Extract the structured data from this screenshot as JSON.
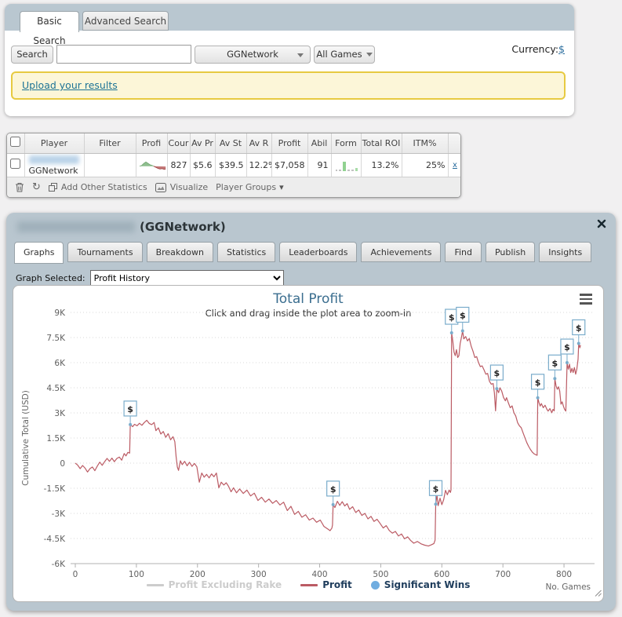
{
  "search_panel": {
    "tabs": [
      {
        "label": "Basic Search",
        "active": true
      },
      {
        "label": "Advanced Search",
        "active": false
      }
    ],
    "search_button_label": "Search",
    "search_input_value": "",
    "network_select_value": "GGNetwork",
    "games_select_value": "All Games",
    "currency_label": "Currency:",
    "currency_symbol": "$",
    "upload_link_label": "Upload your results"
  },
  "results_table": {
    "columns": [
      "Player",
      "Filter",
      "Profi",
      "Cour",
      "Av Pr",
      "Av St",
      "Av R",
      "Profit",
      "Abil",
      "Form",
      "Total ROI",
      "ITM%"
    ],
    "row": {
      "player_name_hidden": true,
      "network": "GGNetwork",
      "count": "827",
      "av_profit": "$5.6",
      "av_stake": "$39.5",
      "av_roi": "12.2%",
      "profit": "$7,058",
      "ability": "91",
      "total_roi": "13.2%",
      "itm": "25%",
      "remove_label": "x"
    },
    "toolbar": {
      "add_other_statistics_label": "Add Other Statistics",
      "visualize_label": "Visualize",
      "player_groups_label": "Player Groups"
    }
  },
  "player_panel": {
    "title_network": "(GGNetwork)",
    "tabs": [
      "Graphs",
      "Tournaments",
      "Breakdown",
      "Statistics",
      "Leaderboards",
      "Achievements",
      "Find",
      "Publish",
      "Insights"
    ],
    "active_tab": "Graphs",
    "graph_selected_label": "Graph Selected:",
    "graph_selected_value": "Profit History"
  },
  "icons": {
    "trash": "trash-can",
    "refresh": "circular-arrow",
    "add_statistics": "copy-squares",
    "visualize": "picture",
    "player_groups": "chevron-down",
    "close": "x-cross",
    "chart_menu": "hamburger",
    "resize": "diagonal-grip",
    "dropdown": "triangle-down"
  },
  "chart_data": {
    "type": "line",
    "title": "Total Profit",
    "subtitle": "Click and drag inside the plot area to zoom-in",
    "xlabel": "No. Games",
    "ylabel": "Cumulative Total (USD)",
    "xlim": [
      0,
      850
    ],
    "ylim": [
      -6000,
      9000
    ],
    "x_ticks": [
      0,
      100,
      200,
      300,
      400,
      500,
      600,
      700,
      800
    ],
    "y_ticks": [
      {
        "label": "9K",
        "value": 9000
      },
      {
        "label": "7.5K",
        "value": 7500
      },
      {
        "label": "6K",
        "value": 6000
      },
      {
        "label": "4.5K",
        "value": 4500
      },
      {
        "label": "3K",
        "value": 3000
      },
      {
        "label": "1.5K",
        "value": 1500
      },
      {
        "label": "0",
        "value": 0
      },
      {
        "label": "-1.5K",
        "value": -1500
      },
      {
        "label": "-3K",
        "value": -3000
      },
      {
        "label": "-4.5K",
        "value": -4500
      },
      {
        "label": "-6K",
        "value": -6000
      }
    ],
    "grid": "dotted-horizontal",
    "legend": [
      {
        "name": "Profit Excluding Rake",
        "color": "#cccccc",
        "enabled": false,
        "marker": "line"
      },
      {
        "name": "Profit",
        "color": "#bb5b64",
        "enabled": true,
        "marker": "line"
      },
      {
        "name": "Significant Wins",
        "color": "#70ade0",
        "enabled": true,
        "marker": "circle"
      }
    ],
    "series": [
      {
        "name": "Profit",
        "color": "#bb5b64",
        "points": [
          [
            0,
            0
          ],
          [
            4,
            -120
          ],
          [
            8,
            -330
          ],
          [
            12,
            -140
          ],
          [
            16,
            -300
          ],
          [
            20,
            -530
          ],
          [
            24,
            -330
          ],
          [
            28,
            -230
          ],
          [
            32,
            -450
          ],
          [
            36,
            -180
          ],
          [
            40,
            60
          ],
          [
            44,
            -130
          ],
          [
            48,
            90
          ],
          [
            52,
            280
          ],
          [
            56,
            110
          ],
          [
            60,
            300
          ],
          [
            64,
            90
          ],
          [
            68,
            280
          ],
          [
            72,
            360
          ],
          [
            76,
            180
          ],
          [
            80,
            570
          ],
          [
            83,
            430
          ],
          [
            86,
            640
          ],
          [
            89,
            600
          ],
          [
            90,
            2300
          ],
          [
            94,
            2180
          ],
          [
            97,
            2320
          ],
          [
            101,
            2230
          ],
          [
            105,
            2380
          ],
          [
            109,
            2260
          ],
          [
            113,
            2430
          ],
          [
            117,
            2560
          ],
          [
            121,
            2370
          ],
          [
            125,
            2300
          ],
          [
            129,
            2430
          ],
          [
            132,
            1940
          ],
          [
            136,
            2110
          ],
          [
            140,
            1740
          ],
          [
            144,
            1890
          ],
          [
            148,
            1540
          ],
          [
            152,
            1760
          ],
          [
            156,
            1390
          ],
          [
            160,
            1580
          ],
          [
            163,
            1280
          ],
          [
            165,
            400
          ],
          [
            167,
            -230
          ],
          [
            169,
            -430
          ],
          [
            172,
            140
          ],
          [
            175,
            -90
          ],
          [
            179,
            110
          ],
          [
            183,
            -160
          ],
          [
            187,
            50
          ],
          [
            191,
            -190
          ],
          [
            195,
            -20
          ],
          [
            199,
            -220
          ],
          [
            203,
            -1140
          ],
          [
            207,
            -590
          ],
          [
            211,
            -840
          ],
          [
            215,
            -670
          ],
          [
            219,
            -880
          ],
          [
            223,
            -640
          ],
          [
            227,
            -810
          ],
          [
            231,
            -590
          ],
          [
            235,
            -1470
          ],
          [
            239,
            -1140
          ],
          [
            243,
            -1310
          ],
          [
            247,
            -1170
          ],
          [
            251,
            -1390
          ],
          [
            255,
            -1710
          ],
          [
            259,
            -1470
          ],
          [
            264,
            -1770
          ],
          [
            269,
            -1540
          ],
          [
            275,
            -1810
          ],
          [
            281,
            -1610
          ],
          [
            287,
            -1960
          ],
          [
            293,
            -1790
          ],
          [
            299,
            -2230
          ],
          [
            305,
            -2040
          ],
          [
            311,
            -2330
          ],
          [
            317,
            -2140
          ],
          [
            323,
            -2400
          ],
          [
            329,
            -2230
          ],
          [
            335,
            -2500
          ],
          [
            341,
            -2330
          ],
          [
            347,
            -2830
          ],
          [
            353,
            -2580
          ],
          [
            359,
            -3060
          ],
          [
            365,
            -2880
          ],
          [
            371,
            -3230
          ],
          [
            377,
            -3080
          ],
          [
            383,
            -3400
          ],
          [
            389,
            -3280
          ],
          [
            395,
            -3530
          ],
          [
            401,
            -3400
          ],
          [
            407,
            -3780
          ],
          [
            413,
            -3930
          ],
          [
            417,
            -4030
          ],
          [
            420,
            -3880
          ],
          [
            421,
            -3700
          ],
          [
            422,
            -2480
          ],
          [
            425,
            -2650
          ],
          [
            429,
            -2280
          ],
          [
            433,
            -2520
          ],
          [
            437,
            -2300
          ],
          [
            441,
            -2560
          ],
          [
            445,
            -2420
          ],
          [
            449,
            -2760
          ],
          [
            454,
            -2600
          ],
          [
            459,
            -2950
          ],
          [
            464,
            -2800
          ],
          [
            469,
            -3120
          ],
          [
            474,
            -3000
          ],
          [
            479,
            -3330
          ],
          [
            484,
            -3180
          ],
          [
            489,
            -3480
          ],
          [
            494,
            -3350
          ],
          [
            499,
            -3600
          ],
          [
            504,
            -3870
          ],
          [
            509,
            -3730
          ],
          [
            514,
            -4020
          ],
          [
            519,
            -4180
          ],
          [
            524,
            -4080
          ],
          [
            529,
            -4350
          ],
          [
            534,
            -4230
          ],
          [
            539,
            -4520
          ],
          [
            544,
            -4400
          ],
          [
            549,
            -4620
          ],
          [
            554,
            -4780
          ],
          [
            560,
            -4680
          ],
          [
            566,
            -4820
          ],
          [
            572,
            -4900
          ],
          [
            578,
            -4950
          ],
          [
            583,
            -4870
          ],
          [
            587,
            -4800
          ],
          [
            589,
            -4600
          ],
          [
            590,
            -2450
          ],
          [
            592,
            -1900
          ],
          [
            594,
            -2540
          ],
          [
            597,
            -2090
          ],
          [
            600,
            -2480
          ],
          [
            603,
            -2190
          ],
          [
            606,
            -1620
          ],
          [
            609,
            -1890
          ],
          [
            612,
            -1610
          ],
          [
            614,
            -1750
          ],
          [
            615,
            -1600
          ],
          [
            616,
            7780
          ],
          [
            618,
            7280
          ],
          [
            620,
            6620
          ],
          [
            622,
            6420
          ],
          [
            624,
            6780
          ],
          [
            626,
            6310
          ],
          [
            628,
            6420
          ],
          [
            630,
            7150
          ],
          [
            632,
            7480
          ],
          [
            634,
            7900
          ],
          [
            636,
            7420
          ],
          [
            639,
            7560
          ],
          [
            642,
            7300
          ],
          [
            645,
            7440
          ],
          [
            648,
            6990
          ],
          [
            651,
            6690
          ],
          [
            654,
            6310
          ],
          [
            657,
            6360
          ],
          [
            660,
            6010
          ],
          [
            663,
            5760
          ],
          [
            666,
            5810
          ],
          [
            669,
            5580
          ],
          [
            672,
            5310
          ],
          [
            675,
            5360
          ],
          [
            678,
            4890
          ],
          [
            681,
            4710
          ],
          [
            684,
            4760
          ],
          [
            686,
            4200
          ],
          [
            688,
            3120
          ],
          [
            690,
            4450
          ],
          [
            693,
            4210
          ],
          [
            695,
            4500
          ],
          [
            698,
            4310
          ],
          [
            701,
            3920
          ],
          [
            704,
            3720
          ],
          [
            706,
            3910
          ],
          [
            709,
            3590
          ],
          [
            712,
            3310
          ],
          [
            715,
            3420
          ],
          [
            718,
            3010
          ],
          [
            721,
            2820
          ],
          [
            724,
            2420
          ],
          [
            727,
            2230
          ],
          [
            730,
            2120
          ],
          [
            733,
            1810
          ],
          [
            736,
            1520
          ],
          [
            739,
            1230
          ],
          [
            742,
            1010
          ],
          [
            745,
            820
          ],
          [
            748,
            660
          ],
          [
            751,
            560
          ],
          [
            754,
            500
          ],
          [
            756,
            470
          ],
          [
            757,
            3900
          ],
          [
            759,
            3620
          ],
          [
            761,
            3410
          ],
          [
            763,
            3560
          ],
          [
            766,
            3310
          ],
          [
            769,
            3460
          ],
          [
            772,
            3210
          ],
          [
            774,
            3110
          ],
          [
            777,
            3260
          ],
          [
            780,
            3010
          ],
          [
            782,
            3210
          ],
          [
            784,
            3120
          ],
          [
            785,
            5050
          ],
          [
            787,
            4620
          ],
          [
            789,
            4410
          ],
          [
            791,
            4560
          ],
          [
            793,
            4310
          ],
          [
            795,
            3520
          ],
          [
            797,
            3660
          ],
          [
            799,
            3410
          ],
          [
            801,
            3210
          ],
          [
            803,
            3110
          ],
          [
            805,
            6000
          ],
          [
            807,
            5610
          ],
          [
            809,
            5910
          ],
          [
            811,
            5410
          ],
          [
            813,
            5660
          ],
          [
            815,
            5410
          ],
          [
            817,
            5710
          ],
          [
            819,
            5310
          ],
          [
            821,
            5610
          ],
          [
            823,
            6210
          ],
          [
            824,
            7150
          ],
          [
            826,
            6890
          ],
          [
            827,
            7050
          ]
        ]
      }
    ],
    "significant_wins": [
      [
        90,
        2300
      ],
      [
        422,
        -2480
      ],
      [
        590,
        -2450
      ],
      [
        616,
        7780
      ],
      [
        634,
        7900
      ],
      [
        690,
        4450
      ],
      [
        757,
        3900
      ],
      [
        785,
        5050
      ],
      [
        805,
        6000
      ],
      [
        824,
        7150
      ]
    ]
  }
}
